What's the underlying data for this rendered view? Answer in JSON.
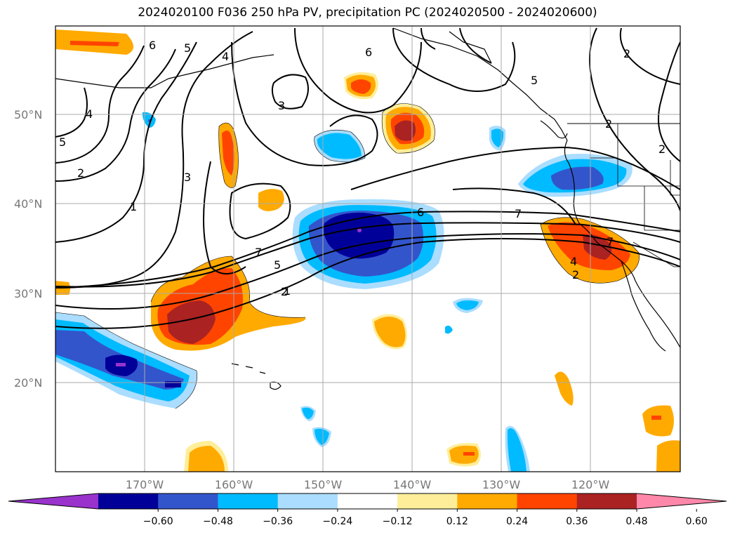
{
  "title": "2024020100 F036 250 hPa PV, precipitation PC (2024020500 - 2024020600)",
  "map": {
    "lat_labels": [
      "50°N",
      "40°N",
      "30°N",
      "20°N"
    ],
    "lat_values": [
      50,
      40,
      30,
      20
    ],
    "lon_labels": [
      "170°W",
      "160°W",
      "150°W",
      "140°W",
      "130°W",
      "120°W"
    ],
    "lon_values": [
      -170,
      -160,
      -150,
      -140,
      -130,
      -120
    ],
    "extent": {
      "lon_min": -180,
      "lon_max": -110,
      "lat_min": 10,
      "lat_max": 60
    }
  },
  "contour_labels": [
    "6",
    "5",
    "4",
    "3",
    "6",
    "4",
    "5",
    "2",
    "3",
    "1",
    "2",
    "6",
    "7",
    "5",
    "7",
    "1",
    "7",
    "4",
    "2",
    "5",
    "2",
    "2",
    "2"
  ],
  "colorbar": {
    "colors": [
      "#9933cc",
      "#000099",
      "#3355cc",
      "#00bbff",
      "#aaddff",
      "#ffffff",
      "#ffee99",
      "#ffaa00",
      "#ff4400",
      "#aa2222",
      "#ff88aa"
    ],
    "tick_labels": [
      "−0.60",
      "−0.48",
      "−0.36",
      "−0.24",
      "−0.12",
      "0.12",
      "0.24",
      "0.36",
      "0.48",
      "0.60"
    ],
    "tick_values": [
      -0.6,
      -0.48,
      -0.36,
      -0.24,
      -0.12,
      0.12,
      0.24,
      0.36,
      0.48,
      0.6
    ],
    "extend": "both"
  }
}
